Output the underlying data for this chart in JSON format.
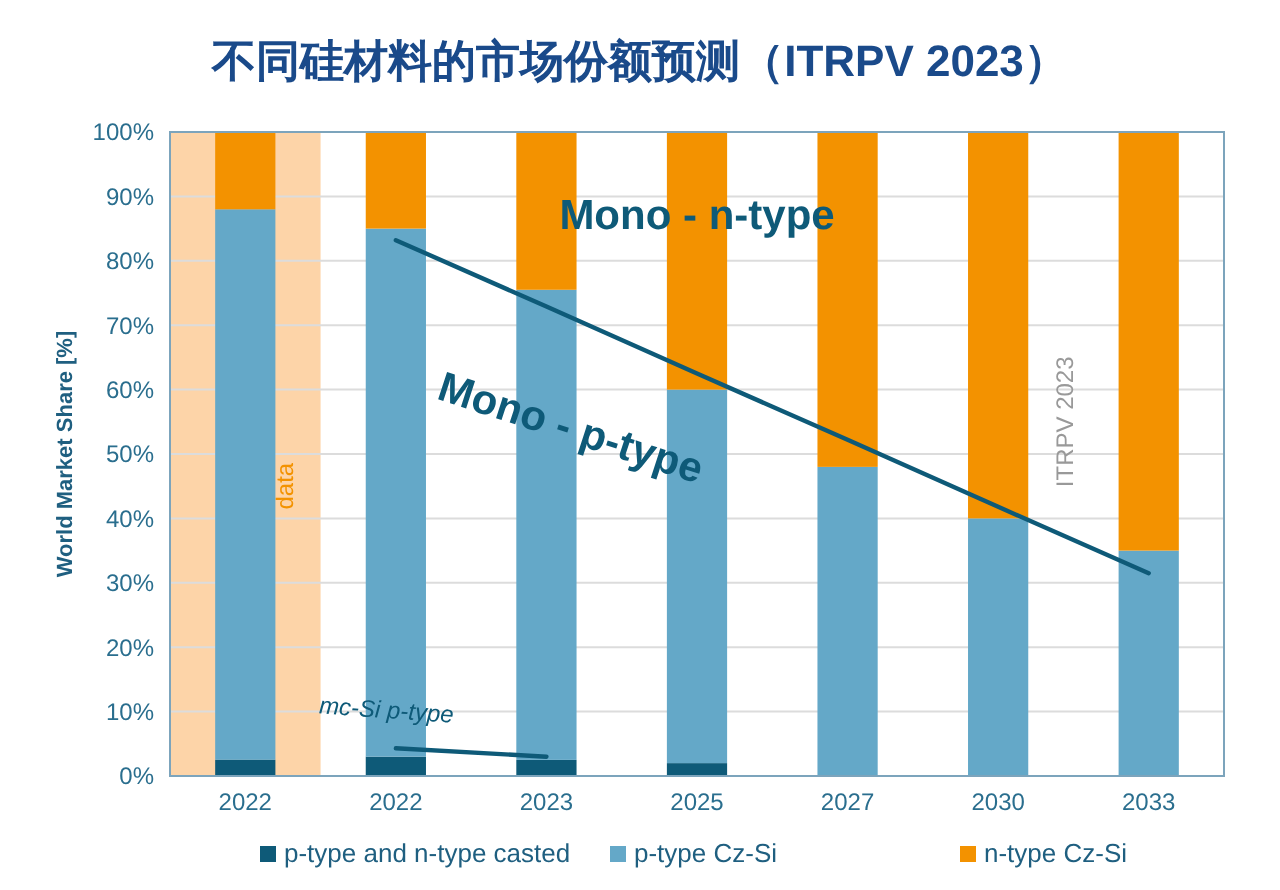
{
  "chart_data": {
    "type": "bar",
    "title": "不同硅材料的市场份额预测（ITRPV 2023）",
    "ylabel": "World Market Share [%]",
    "categories": [
      "2022",
      "2022",
      "2023",
      "2025",
      "2027",
      "2030",
      "2033"
    ],
    "stacked": true,
    "series": [
      {
        "name": "p-type and n-type casted",
        "color": "#0e5a78",
        "values": [
          2.5,
          3,
          2.5,
          2,
          0,
          0,
          0
        ]
      },
      {
        "name": "p-type Cz-Si",
        "color": "#64a8c8",
        "values": [
          85.5,
          82,
          73,
          58,
          48,
          40,
          35
        ]
      },
      {
        "name": "n-type Cz-Si",
        "color": "#f39200",
        "values": [
          12,
          15,
          24.5,
          40,
          52,
          60,
          65
        ]
      },
      {
        "type": "line",
        "color": "#0e5a78",
        "values": [
          null,
          83.2,
          72.9,
          62.5,
          52.2,
          41.8,
          31.5
        ]
      },
      {
        "type": "line",
        "color": "#0e5a78",
        "values": [
          null,
          4.3,
          3,
          null,
          null,
          null,
          null
        ]
      }
    ],
    "ylim": [
      0,
      100
    ],
    "yticks": [
      {
        "value": 0,
        "label": "0%"
      },
      {
        "value": 10,
        "label": "10%"
      },
      {
        "value": 20,
        "label": "20%"
      },
      {
        "value": 30,
        "label": "30%"
      },
      {
        "value": 40,
        "label": "40%"
      },
      {
        "value": 50,
        "label": "50%"
      },
      {
        "value": 60,
        "label": "60%"
      },
      {
        "value": 70,
        "label": "70%"
      },
      {
        "value": 80,
        "label": "80%"
      },
      {
        "value": 90,
        "label": "90%"
      },
      {
        "value": 100,
        "label": "100%"
      }
    ],
    "grid": "y",
    "legend": "bottom",
    "bands": [
      {
        "axis": "x",
        "from": "2022",
        "to": "2022",
        "label": "data",
        "color": "#fdd4a8"
      }
    ],
    "annotations": [
      "Mono - n-type",
      "Mono - p-type",
      "mc-Si p-type",
      "ITRPV 2023"
    ]
  }
}
